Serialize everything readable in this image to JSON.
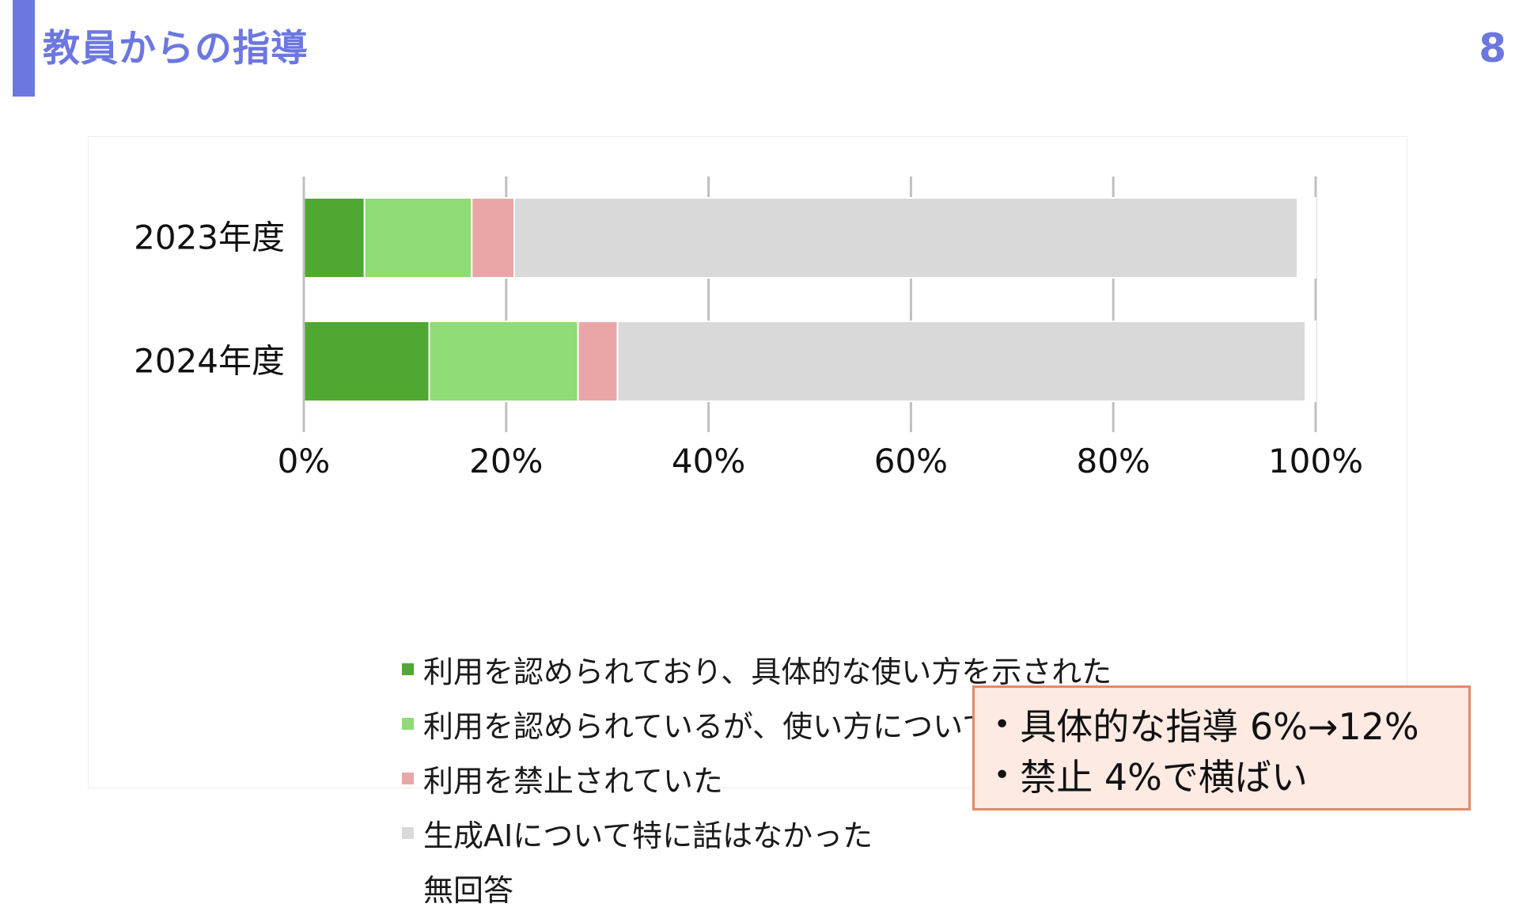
{
  "header": {
    "title": "教員からの指導",
    "page_number": "8"
  },
  "chart_data": {
    "type": "bar",
    "orientation": "horizontal",
    "stacked": true,
    "categories": [
      "2023年度",
      "2024年度"
    ],
    "x_ticks": [
      "0%",
      "20%",
      "40%",
      "60%",
      "80%",
      "100%"
    ],
    "xlim": [
      0,
      100
    ],
    "grid": true,
    "legend_position": "bottom",
    "series": [
      {
        "name": "利用を認められており、具体的な使い方を示された",
        "color": "#4ea832",
        "values": [
          6,
          12.4
        ]
      },
      {
        "name": "利用を認められているが、使い方については言及はなかった",
        "color": "#8fdb74",
        "values": [
          10.6,
          14.7
        ]
      },
      {
        "name": "利用を禁止されていた",
        "color": "#eaa6a6",
        "values": [
          4.2,
          3.9
        ]
      },
      {
        "name": "生成AIについて特に話はなかった",
        "color": "#d9d9d9",
        "values": [
          77.4,
          68
        ]
      },
      {
        "name": "無回答",
        "color": "#ffffff",
        "values": [
          1.8,
          1
        ]
      }
    ]
  },
  "note": {
    "lines": [
      "具体的な指導 6%→12%",
      "禁止 4%で横ばい"
    ],
    "bullet": "•",
    "background": "#fdeae3",
    "border": "#e08a6a"
  },
  "colors": {
    "accent": "#6c77e0"
  }
}
